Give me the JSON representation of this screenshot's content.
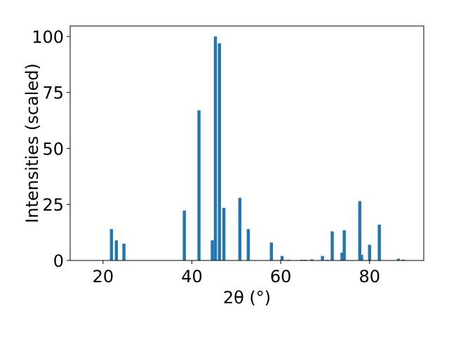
{
  "chart_data": {
    "type": "bar",
    "xlabel": "2θ (°)",
    "ylabel": "Intensities (scaled)",
    "x": [
      21.9,
      23.0,
      24.7,
      38.3,
      41.6,
      44.6,
      45.3,
      46.2,
      47.2,
      50.8,
      52.7,
      57.9,
      60.3,
      61.7,
      64.7,
      65.5,
      67.0,
      69.4,
      70.5,
      71.6,
      73.8,
      74.3,
      77.8,
      78.2,
      80.0,
      82.2,
      86.5,
      87.6
    ],
    "values": [
      14,
      9,
      7.5,
      22.3,
      67,
      9,
      100,
      97,
      23.5,
      28,
      14,
      8,
      2,
      0.3,
      0.3,
      0.3,
      0.5,
      2,
      0.3,
      13,
      3.5,
      13.5,
      26.5,
      2.5,
      7,
      16,
      0.8,
      0.4
    ],
    "color": "#1f77b4",
    "xlim": [
      12.6,
      92.2
    ],
    "xticks": [
      20,
      40,
      60,
      80
    ],
    "ylim": [
      0,
      104.7
    ],
    "yticks": [
      0,
      25,
      50,
      75,
      100
    ]
  }
}
